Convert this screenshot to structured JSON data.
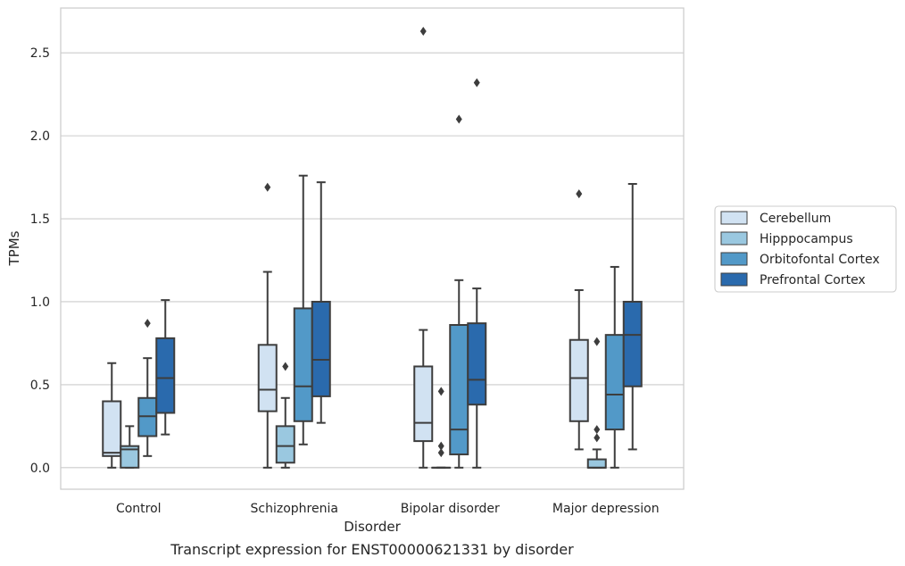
{
  "caption": "Transcript expression for ENST00000621331 by disorder",
  "chart_data": {
    "type": "box",
    "title": "",
    "xlabel": "Disorder",
    "ylabel": "TPMs",
    "ylim": [
      -0.13,
      2.77
    ],
    "yticks": [
      0.0,
      0.5,
      1.0,
      1.5,
      2.0,
      2.5
    ],
    "ytick_labels": [
      "0.0",
      "0.5",
      "1.0",
      "1.5",
      "2.0",
      "2.5"
    ],
    "grid": "horizontal",
    "legend_position": "right",
    "categories": [
      "Control",
      "Schizophrenia",
      "Bipolar disorder",
      "Major depression"
    ],
    "series": [
      {
        "name": "Cerebellum",
        "color": "#d1e2f2",
        "boxes": [
          {
            "min": 0.0,
            "q1": 0.07,
            "median": 0.09,
            "q3": 0.4,
            "max": 0.63,
            "outliers": []
          },
          {
            "min": 0.0,
            "q1": 0.34,
            "median": 0.47,
            "q3": 0.74,
            "max": 1.18,
            "outliers": [
              1.69
            ]
          },
          {
            "min": 0.0,
            "q1": 0.16,
            "median": 0.27,
            "q3": 0.61,
            "max": 0.83,
            "outliers": [
              2.63
            ]
          },
          {
            "min": 0.11,
            "q1": 0.28,
            "median": 0.54,
            "q3": 0.77,
            "max": 1.07,
            "outliers": [
              1.65
            ]
          }
        ]
      },
      {
        "name": "Hipppocampus",
        "color": "#9ac8e0",
        "boxes": [
          {
            "min": 0.0,
            "q1": 0.0,
            "median": 0.11,
            "q3": 0.13,
            "max": 0.25,
            "outliers": []
          },
          {
            "min": 0.0,
            "q1": 0.03,
            "median": 0.13,
            "q3": 0.25,
            "max": 0.42,
            "outliers": [
              0.61
            ]
          },
          {
            "min": 0.0,
            "q1": 0.0,
            "median": 0.0,
            "q3": 0.0,
            "max": 0.0,
            "outliers": [
              0.46,
              0.13,
              0.09
            ]
          },
          {
            "min": 0.0,
            "q1": 0.0,
            "median": 0.0,
            "q3": 0.05,
            "max": 0.11,
            "outliers": [
              0.76,
              0.23,
              0.18
            ]
          }
        ]
      },
      {
        "name": "Orbitofontal Cortex",
        "color": "#5299c8",
        "boxes": [
          {
            "min": 0.07,
            "q1": 0.19,
            "median": 0.31,
            "q3": 0.42,
            "max": 0.66,
            "outliers": [
              0.87
            ]
          },
          {
            "min": 0.14,
            "q1": 0.28,
            "median": 0.49,
            "q3": 0.96,
            "max": 1.76,
            "outliers": []
          },
          {
            "min": 0.0,
            "q1": 0.08,
            "median": 0.23,
            "q3": 0.86,
            "max": 1.13,
            "outliers": [
              2.1
            ]
          },
          {
            "min": 0.0,
            "q1": 0.23,
            "median": 0.44,
            "q3": 0.8,
            "max": 1.21,
            "outliers": []
          }
        ]
      },
      {
        "name": "Prefrontal Cortex",
        "color": "#2a6aad",
        "boxes": [
          {
            "min": 0.2,
            "q1": 0.33,
            "median": 0.54,
            "q3": 0.78,
            "max": 1.01,
            "outliers": []
          },
          {
            "min": 0.27,
            "q1": 0.43,
            "median": 0.65,
            "q3": 1.0,
            "max": 1.72,
            "outliers": []
          },
          {
            "min": 0.0,
            "q1": 0.38,
            "median": 0.53,
            "q3": 0.87,
            "max": 1.08,
            "outliers": [
              2.32
            ]
          },
          {
            "min": 0.11,
            "q1": 0.49,
            "median": 0.8,
            "q3": 1.0,
            "max": 1.71,
            "outliers": []
          }
        ]
      }
    ]
  }
}
